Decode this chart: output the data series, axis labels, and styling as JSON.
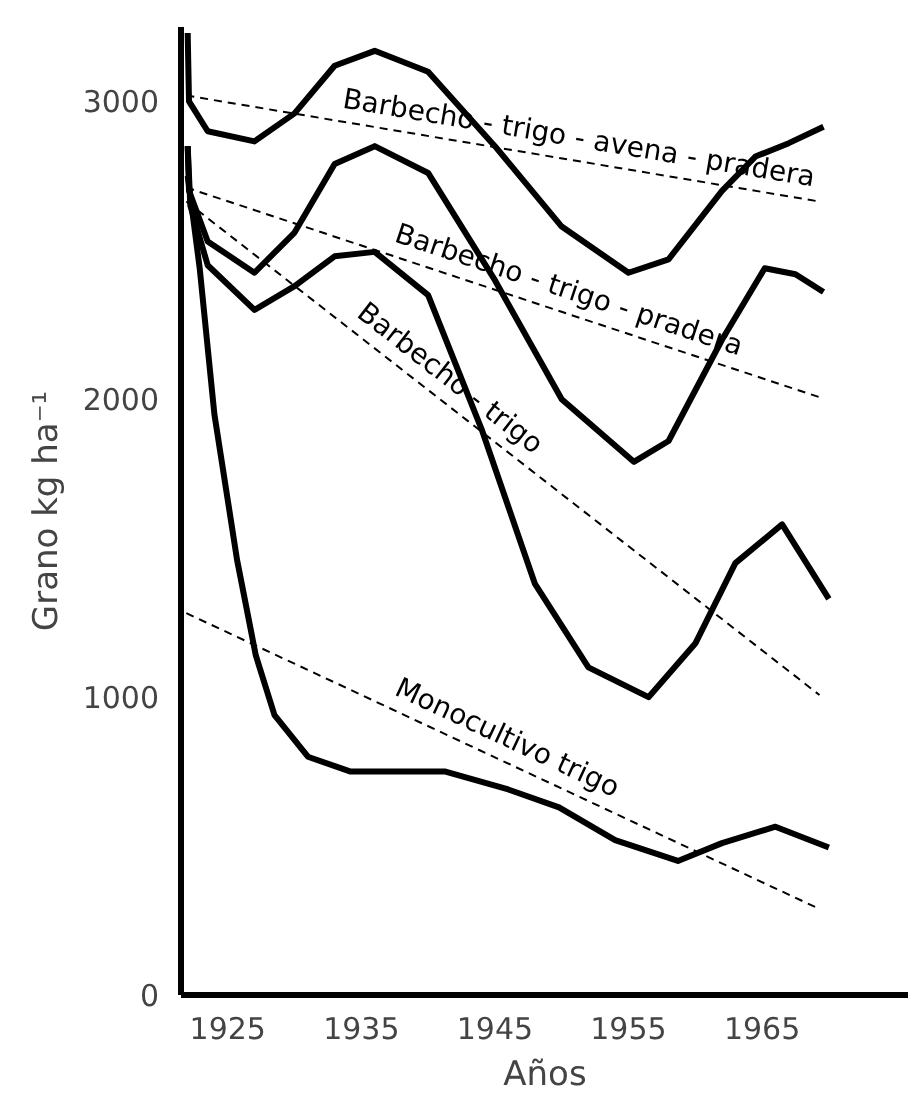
{
  "chart_data": {
    "type": "line",
    "xlabel": "Años",
    "ylabel": "Grano kg ha⁻¹",
    "xlim": [
      1921.5,
      1976
    ],
    "ylim": [
      0,
      3250
    ],
    "xticks": [
      1925,
      1935,
      1945,
      1955,
      1965
    ],
    "yticks": [
      0,
      1000,
      2000,
      3000
    ],
    "grid": false,
    "marker": "none",
    "series": [
      {
        "color": "#000000",
        "line_style": "solid",
        "x": [
          1922,
          1922.1,
          1923.5,
          1927,
          1930,
          1933,
          1936,
          1940,
          1945,
          1950,
          1955,
          1958,
          1962,
          1964.5,
          1967,
          1969.6
        ],
        "values": [
          3230,
          3000,
          2900,
          2866,
          2960,
          3120,
          3170,
          3100,
          2850,
          2580,
          2425,
          2470,
          2700,
          2815,
          2860,
          2915
        ]
      },
      {
        "color": "#000000",
        "line_style": "solid",
        "x": [
          1922,
          1922.1,
          1923.5,
          1927,
          1930,
          1933,
          1936,
          1940,
          1945,
          1950,
          1955.4,
          1958,
          1962,
          1965.2,
          1967.5,
          1969.6
        ],
        "values": [
          2850,
          2700,
          2530,
          2425,
          2560,
          2790,
          2850,
          2760,
          2400,
          2000,
          1790,
          1860,
          2200,
          2440,
          2420,
          2360
        ]
      },
      {
        "color": "#000000",
        "line_style": "solid",
        "x": [
          1922,
          1922.2,
          1923.5,
          1927,
          1930,
          1933,
          1936,
          1940,
          1944,
          1948,
          1952,
          1956.5,
          1960,
          1963,
          1966.5,
          1970
        ],
        "values": [
          2850,
          2650,
          2450,
          2300,
          2380,
          2480,
          2495,
          2350,
          1900,
          1380,
          1100,
          1000,
          1180,
          1450,
          1580,
          1330
        ]
      },
      {
        "color": "#000000",
        "line_style": "solid",
        "x": [
          1922,
          1922.9,
          1924,
          1925.7,
          1927.1,
          1928.5,
          1931,
          1934.2,
          1941.3,
          1946,
          1949.8,
          1954,
          1958.7,
          1962,
          1966,
          1970
        ],
        "values": [
          2750,
          2440,
          1950,
          1460,
          1140,
          940,
          800,
          750,
          750,
          690,
          630,
          520,
          450,
          510,
          565,
          495
        ]
      },
      {
        "color": "#000000",
        "line_style": "dashed",
        "x": [
          1921.9,
          1969.3
        ],
        "values": [
          3020,
          2664
        ]
      },
      {
        "color": "#000000",
        "line_style": "dashed",
        "x": [
          1921.9,
          1969.3
        ],
        "values": [
          2711,
          2007
        ]
      },
      {
        "color": "#000000",
        "line_style": "dashed",
        "x": [
          1921.9,
          1969.3
        ],
        "values": [
          2664,
          1007
        ]
      },
      {
        "color": "#000000",
        "line_style": "dashed",
        "x": [
          1921.9,
          1969
        ],
        "values": [
          1282,
          295
        ]
      }
    ],
    "annotations": [
      {
        "text": "Barbecho - trigo - avena - pradera",
        "x": 1951,
        "y": 2801
      },
      {
        "text": "Barbecho - trigo - pradera",
        "x": 1950,
        "y": 2294
      },
      {
        "text": "Barbecho - trigo",
        "x": 1940.6,
        "y": 2010
      },
      {
        "text": "Monocultivo trigo",
        "x": 1945.2,
        "y": 794
      }
    ]
  }
}
